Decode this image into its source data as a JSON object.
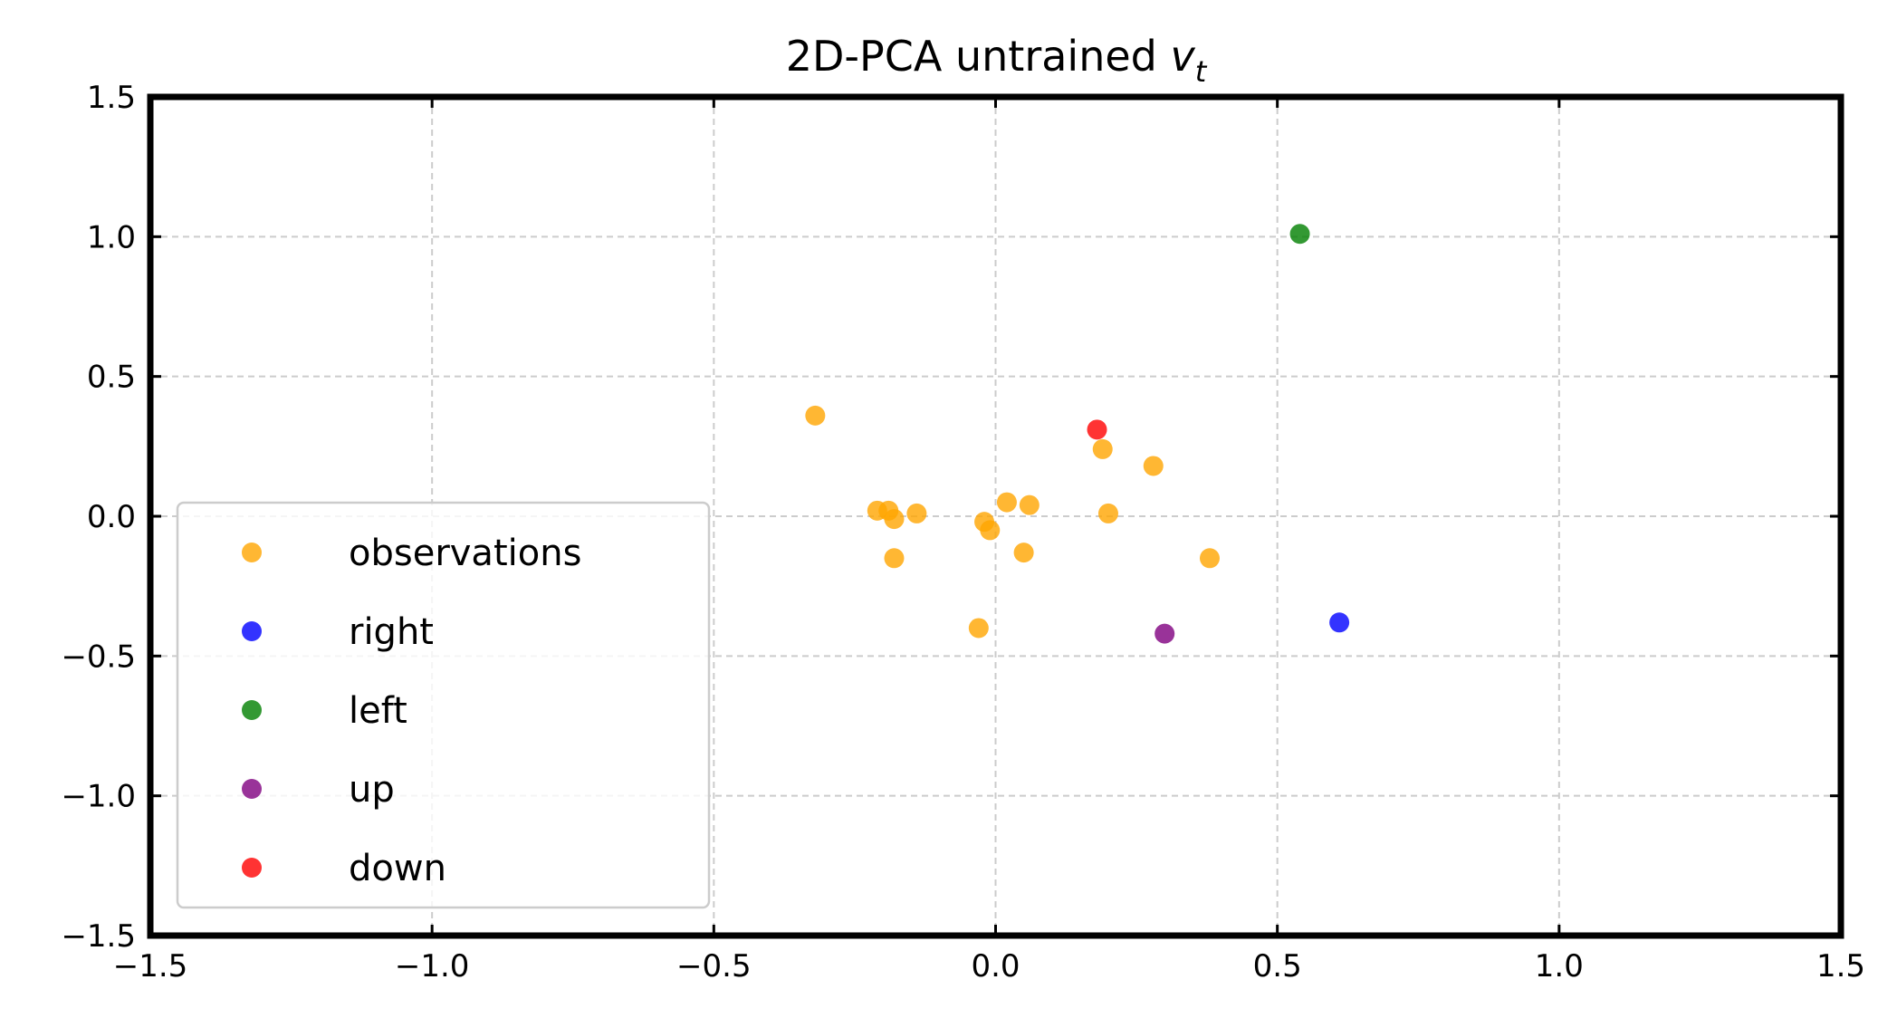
{
  "chart_data": {
    "type": "scatter",
    "title": {
      "text": "2D-PCA untrained ",
      "math_main": "v",
      "math_sub": "t"
    },
    "xlabel": "",
    "ylabel": "",
    "xlim": [
      -1.5,
      1.5
    ],
    "ylim": [
      -1.5,
      1.5
    ],
    "xticks": [
      -1.5,
      -1.0,
      -0.5,
      0.0,
      0.5,
      1.0,
      1.5
    ],
    "yticks": [
      -1.5,
      -1.0,
      -0.5,
      0.0,
      0.5,
      1.0,
      1.5
    ],
    "xtick_labels": [
      "−1.5",
      "−1.0",
      "−0.5",
      "0.0",
      "0.5",
      "1.0",
      "1.5"
    ],
    "ytick_labels": [
      "−1.5",
      "−1.0",
      "−0.5",
      "0.0",
      "0.5",
      "1.0",
      "1.5"
    ],
    "grid": true,
    "legend_position": "lower-left",
    "series": [
      {
        "name": "observations",
        "color": "#ffa500",
        "points": [
          [
            -0.32,
            0.36
          ],
          [
            -0.21,
            0.02
          ],
          [
            -0.19,
            0.02
          ],
          [
            -0.18,
            -0.01
          ],
          [
            -0.18,
            -0.15
          ],
          [
            -0.14,
            0.01
          ],
          [
            -0.03,
            -0.4
          ],
          [
            -0.02,
            -0.02
          ],
          [
            -0.01,
            -0.05
          ],
          [
            0.02,
            0.05
          ],
          [
            0.05,
            -0.13
          ],
          [
            0.06,
            0.04
          ],
          [
            0.19,
            0.24
          ],
          [
            0.2,
            0.01
          ],
          [
            0.28,
            0.18
          ],
          [
            0.38,
            -0.15
          ]
        ]
      },
      {
        "name": "right",
        "color": "#0000ff",
        "points": [
          [
            0.61,
            -0.38
          ]
        ]
      },
      {
        "name": "left",
        "color": "#008000",
        "points": [
          [
            0.54,
            1.01
          ]
        ]
      },
      {
        "name": "up",
        "color": "#800080",
        "points": [
          [
            0.3,
            -0.42
          ]
        ]
      },
      {
        "name": "down",
        "color": "#ff0000",
        "points": [
          [
            0.18,
            0.31
          ]
        ]
      }
    ]
  }
}
